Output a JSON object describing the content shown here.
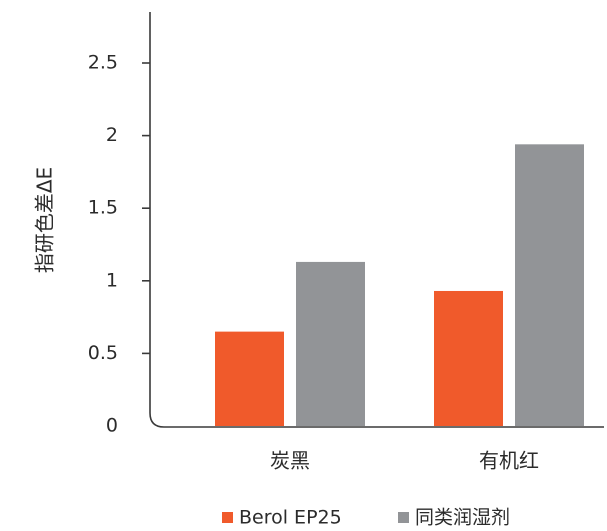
{
  "chart_data": {
    "type": "bar",
    "title": "",
    "ylabel": "指研色差ΔE",
    "xlabel": "",
    "categories": [
      "炭黑",
      "有机红"
    ],
    "series": [
      {
        "name": "Berol EP25",
        "values": [
          0.65,
          0.93
        ],
        "color": "#f05a2b"
      },
      {
        "name": "同类润湿剂",
        "values": [
          1.13,
          1.94
        ],
        "color": "#929497"
      }
    ],
    "ylim": [
      0,
      2.5
    ],
    "yticks": [
      "0",
      "0.5",
      "1",
      "1.5",
      "2",
      "2.5"
    ],
    "grid": false,
    "legend_position": "bottom"
  }
}
